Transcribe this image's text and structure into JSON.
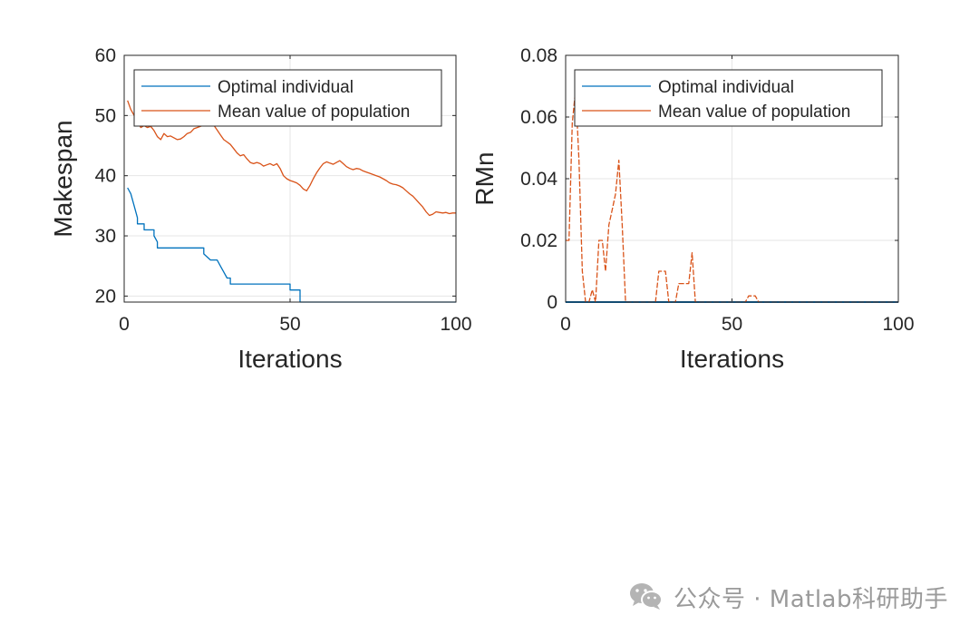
{
  "chart_data": [
    {
      "type": "line",
      "xlabel": "Iterations",
      "ylabel": "Makespan",
      "xlim": [
        0,
        100
      ],
      "ylim": [
        19,
        60
      ],
      "xticks": [
        "0",
        "50",
        "100"
      ],
      "yticks": [
        "20",
        "30",
        "40",
        "50",
        "60"
      ],
      "grid": true,
      "legend": "top-left",
      "series": [
        {
          "name": "Optimal individual",
          "color": "#0072BD",
          "x": [
            1,
            2,
            3,
            4,
            4,
            5,
            6,
            6,
            8,
            9,
            9,
            10,
            10,
            11,
            12,
            13,
            14,
            15,
            16,
            17,
            18,
            19,
            20,
            21,
            22,
            23,
            24,
            24,
            26,
            27,
            27,
            28,
            29,
            30,
            31,
            32,
            32,
            35,
            38,
            40,
            42,
            44,
            46,
            48,
            50,
            50,
            52,
            53,
            53,
            55,
            60,
            70,
            80,
            90,
            100
          ],
          "y": [
            38,
            37,
            35,
            33,
            32,
            32,
            32,
            31,
            31,
            31,
            30,
            29,
            28,
            28,
            28,
            28,
            28,
            28,
            28,
            28,
            28,
            28,
            28,
            28,
            28,
            28,
            28,
            27,
            26,
            26,
            26,
            26,
            25,
            24,
            23,
            23,
            22,
            22,
            22,
            22,
            22,
            22,
            22,
            22,
            22,
            21,
            21,
            21,
            19,
            19,
            19,
            19,
            19,
            19,
            19
          ]
        },
        {
          "name": "Mean value of population",
          "color": "#D95319",
          "x": [
            1,
            2,
            3,
            4,
            5,
            6,
            7,
            8,
            9,
            10,
            11,
            12,
            13,
            14,
            15,
            16,
            17,
            18,
            19,
            20,
            21,
            22,
            23,
            24,
            25,
            26,
            27,
            28,
            29,
            30,
            31,
            32,
            33,
            34,
            35,
            36,
            37,
            38,
            39,
            40,
            41,
            42,
            43,
            44,
            45,
            46,
            47,
            48,
            49,
            50,
            51,
            52,
            53,
            54,
            55,
            56,
            57,
            58,
            59,
            60,
            61,
            62,
            63,
            64,
            65,
            66,
            67,
            68,
            69,
            70,
            71,
            72,
            73,
            74,
            75,
            76,
            77,
            78,
            79,
            80,
            81,
            82,
            83,
            84,
            85,
            86,
            87,
            88,
            89,
            90,
            91,
            92,
            93,
            94,
            95,
            96,
            97,
            98,
            99,
            100
          ],
          "y": [
            52.5,
            51,
            50,
            49,
            48,
            48.3,
            48,
            48.2,
            47.5,
            46.5,
            46,
            47,
            46.5,
            46.6,
            46.3,
            46,
            46.1,
            46.5,
            47,
            47.2,
            47.8,
            48,
            48.2,
            48.4,
            48.6,
            48.8,
            48.4,
            47.6,
            46.8,
            46,
            45.6,
            45.2,
            44.5,
            43.8,
            43.3,
            43.5,
            42.8,
            42.2,
            42,
            42.2,
            42,
            41.6,
            41.8,
            42,
            41.7,
            42,
            41.2,
            40,
            39.5,
            39.2,
            39,
            38.8,
            38.4,
            37.8,
            37.5,
            38.4,
            39.5,
            40.5,
            41.3,
            42,
            42.3,
            42.1,
            41.9,
            42.2,
            42.5,
            42,
            41.5,
            41.2,
            41,
            41.2,
            41.1,
            40.8,
            40.6,
            40.4,
            40.2,
            40,
            39.8,
            39.5,
            39.2,
            38.8,
            38.6,
            38.5,
            38.3,
            38,
            37.5,
            37,
            36.6,
            36,
            35.4,
            34.8,
            34,
            33.4,
            33.6,
            34,
            33.9,
            33.8,
            33.9,
            33.7,
            33.8,
            33.8
          ]
        }
      ]
    },
    {
      "type": "line",
      "xlabel": "Iterations",
      "ylabel": "RMn",
      "xlim": [
        0,
        100
      ],
      "ylim": [
        0,
        0.08
      ],
      "xticks": [
        "0",
        "50",
        "100"
      ],
      "yticks": [
        "0",
        "0.02",
        "0.04",
        "0.06",
        "0.08"
      ],
      "grid": true,
      "legend": "top-left",
      "series": [
        {
          "name": "Optimal individual",
          "color": "#0072BD",
          "x": [
            0,
            100
          ],
          "y": [
            0,
            0
          ]
        },
        {
          "name": "Mean value of population",
          "color": "#D95319",
          "x": [
            0,
            1,
            2,
            3,
            4,
            5,
            6,
            7,
            8,
            9,
            10,
            11,
            12,
            13,
            14,
            15,
            16,
            17,
            18,
            19,
            20,
            26,
            27,
            28,
            29,
            30,
            31,
            32,
            33,
            34,
            35,
            36,
            37,
            38,
            39,
            40,
            41,
            42,
            50,
            54,
            55,
            56,
            57,
            58,
            59,
            60,
            70,
            80,
            90,
            100
          ],
          "y": [
            0.02,
            0.02,
            0.058,
            0.069,
            0.046,
            0.01,
            0,
            0,
            0.004,
            0,
            0.02,
            0.02,
            0.01,
            0.025,
            0.03,
            0.035,
            0.046,
            0.025,
            0,
            0,
            0,
            0,
            0,
            0.01,
            0.01,
            0.01,
            0,
            0,
            0,
            0.006,
            0.006,
            0.006,
            0.006,
            0.016,
            0,
            0,
            0,
            0,
            0,
            0,
            0.002,
            0.002,
            0.002,
            0,
            0,
            0,
            0,
            0,
            0,
            0
          ]
        }
      ]
    }
  ],
  "watermark": {
    "text": "公众号 · Matlab科研助手",
    "icon": "wechat-icon"
  }
}
